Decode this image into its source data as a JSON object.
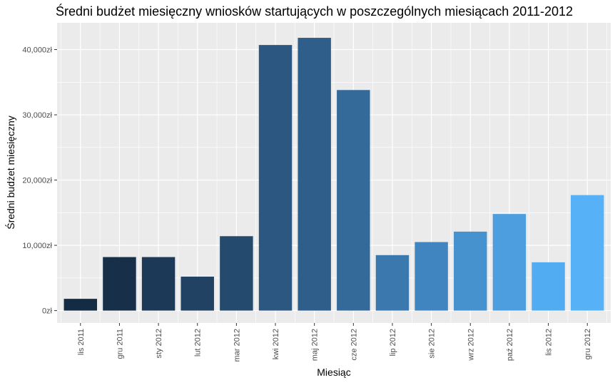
{
  "chart_data": {
    "type": "bar",
    "title": "Średni budżet miesięczny wniosków startujących w poszczególnych miesiącach 2011-2012",
    "xlabel": "Miesiąc",
    "ylabel": "Średni budżet miesięczny",
    "categories": [
      "lis 2011",
      "gru 2011",
      "sty 2012",
      "lut 2012",
      "mar 2012",
      "kwi 2012",
      "maj 2012",
      "cze 2012",
      "lip 2012",
      "sie 2012",
      "wrz 2012",
      "paź 2012",
      "lis 2012",
      "gru 2012"
    ],
    "values": [
      1800,
      8200,
      8200,
      5200,
      11400,
      40700,
      41800,
      33800,
      8500,
      10500,
      12100,
      14800,
      7400,
      17700
    ],
    "ylim": [
      -1900,
      44100
    ],
    "yticks": [
      0,
      10000,
      20000,
      30000,
      40000
    ],
    "ytick_labels": [
      "0zł",
      "10,000zł",
      "20,000zł",
      "30,000zł",
      "40,000zł"
    ],
    "grid": true,
    "legend": "none",
    "colors": [
      "#132b43",
      "#182f49",
      "#1c3a57",
      "#214263",
      "#244a6e",
      "#2b5780",
      "#2e5e89",
      "#336a9a",
      "#3a78ad",
      "#4085bf",
      "#4692cf",
      "#4c9edf",
      "#52acf1",
      "#56b1f7"
    ],
    "panel_background": "#ebebeb",
    "gridline_color": "#ffffff"
  }
}
